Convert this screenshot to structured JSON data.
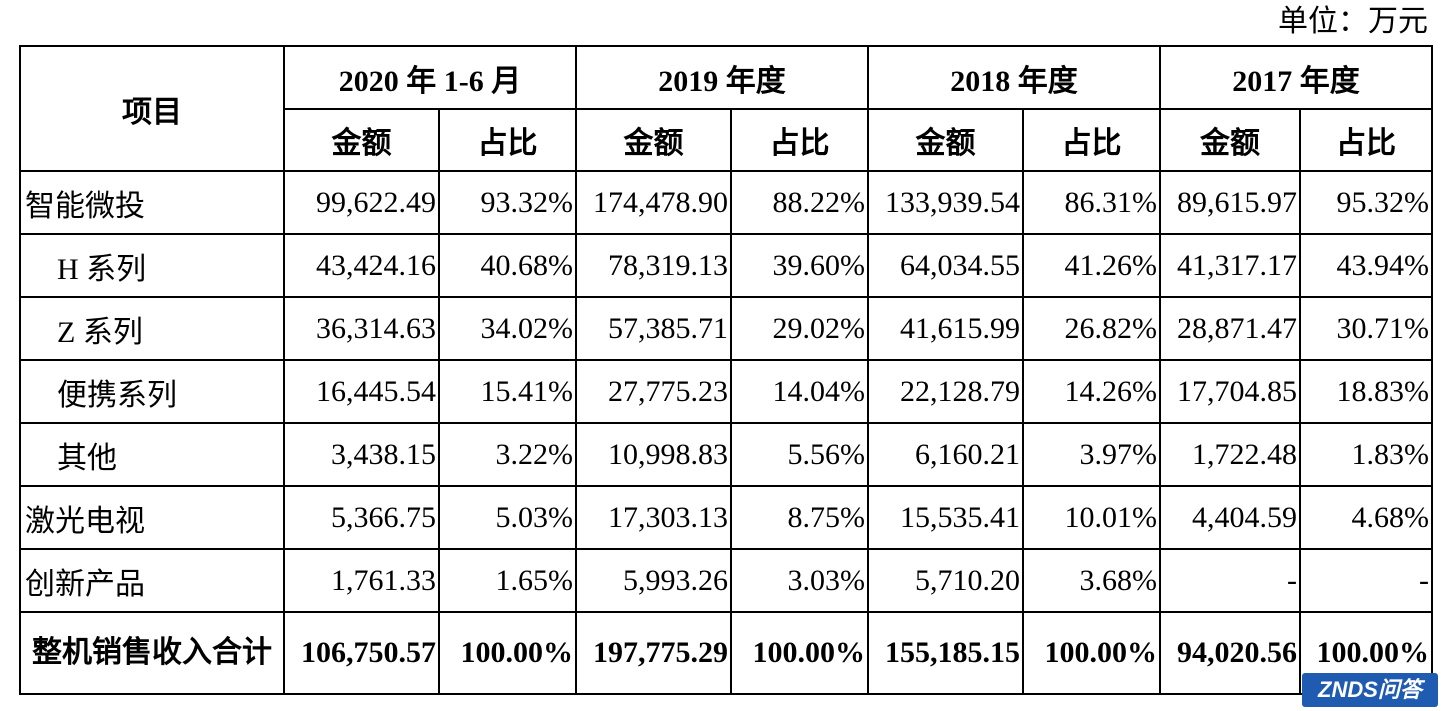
{
  "unit_label": "单位：万元",
  "header": {
    "item_label": "项目",
    "periods": [
      "2020 年 1-6 月",
      "2019 年度",
      "2018 年度",
      "2017 年度"
    ],
    "amount_label": "金额",
    "ratio_label": "占比"
  },
  "rows": [
    {
      "label": "智能微投",
      "values": [
        "99,622.49",
        "93.32%",
        "174,478.90",
        "88.22%",
        "133,939.54",
        "86.31%",
        "89,615.97",
        "95.32%"
      ]
    },
    {
      "label": "H 系列",
      "values": [
        "43,424.16",
        "40.68%",
        "78,319.13",
        "39.60%",
        "64,034.55",
        "41.26%",
        "41,317.17",
        "43.94%"
      ]
    },
    {
      "label": "Z 系列",
      "values": [
        "36,314.63",
        "34.02%",
        "57,385.71",
        "29.02%",
        "41,615.99",
        "26.82%",
        "28,871.47",
        "30.71%"
      ]
    },
    {
      "label": "便携系列",
      "values": [
        "16,445.54",
        "15.41%",
        "27,775.23",
        "14.04%",
        "22,128.79",
        "14.26%",
        "17,704.85",
        "18.83%"
      ]
    },
    {
      "label": "其他",
      "values": [
        "3,438.15",
        "3.22%",
        "10,998.83",
        "5.56%",
        "6,160.21",
        "3.97%",
        "1,722.48",
        "1.83%"
      ]
    },
    {
      "label": "激光电视",
      "values": [
        "5,366.75",
        "5.03%",
        "17,303.13",
        "8.75%",
        "15,535.41",
        "10.01%",
        "4,404.59",
        "4.68%"
      ]
    },
    {
      "label": "创新产品",
      "values": [
        "1,761.33",
        "1.65%",
        "5,993.26",
        "3.03%",
        "5,710.20",
        "3.68%",
        "-",
        "-"
      ]
    }
  ],
  "total": {
    "label": "整机销售收入合计",
    "values": [
      "106,750.57",
      "100.00%",
      "197,775.29",
      "100.00%",
      "155,185.15",
      "100.00%",
      "94,020.56",
      "100.00%"
    ]
  },
  "watermark": "ZNDS问答"
}
